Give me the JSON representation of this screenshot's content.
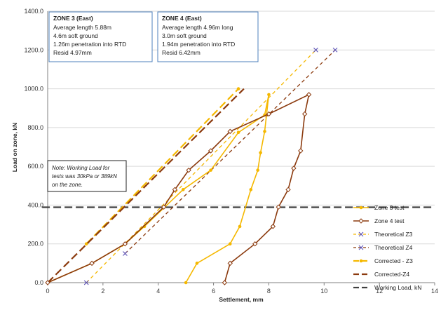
{
  "chart_data": {
    "type": "line",
    "title": "",
    "xlabel": "Settlement, mm",
    "ylabel": "Load on zone, kN",
    "xlim": [
      0,
      14
    ],
    "ylim": [
      0,
      1400
    ],
    "xticks": [
      "0",
      "2",
      "4",
      "6",
      "8",
      "10",
      "12",
      "14"
    ],
    "yticks": [
      "0.0",
      "200.0",
      "400.0",
      "600.0",
      "800.0",
      "1000.0",
      "1200.0",
      "1400.0"
    ],
    "grid": "horizontal",
    "legend_position": "right",
    "series": [
      {
        "name": "Zone 3 test",
        "color": "#F5B800",
        "style": "solid",
        "marker": "dot",
        "points": [
          [
            5.0,
            0
          ],
          [
            5.4,
            100
          ],
          [
            6.6,
            200
          ],
          [
            6.95,
            290
          ],
          [
            7.35,
            480
          ],
          [
            7.6,
            580
          ],
          [
            7.7,
            670
          ],
          [
            7.85,
            780
          ],
          [
            8.0,
            970
          ],
          [
            7.85,
            865
          ],
          [
            6.9,
            775
          ],
          [
            5.9,
            580
          ],
          [
            4.9,
            480
          ],
          [
            3.5,
            290
          ],
          [
            2.8,
            200
          ],
          [
            1.6,
            100
          ],
          [
            0,
            0
          ]
        ]
      },
      {
        "name": "Zone 4 test",
        "color": "#8B3A0E",
        "style": "solid",
        "marker": "diamond",
        "points": [
          [
            6.4,
            0
          ],
          [
            6.6,
            100
          ],
          [
            7.5,
            200
          ],
          [
            8.15,
            290
          ],
          [
            8.35,
            390
          ],
          [
            8.7,
            480
          ],
          [
            8.9,
            590
          ],
          [
            9.15,
            680
          ],
          [
            9.3,
            870
          ],
          [
            9.45,
            970
          ],
          [
            8.0,
            870
          ],
          [
            6.6,
            780
          ],
          [
            5.9,
            680
          ],
          [
            5.1,
            580
          ],
          [
            4.6,
            480
          ],
          [
            4.2,
            390
          ],
          [
            2.8,
            200
          ],
          [
            1.6,
            100
          ],
          [
            0,
            0
          ]
        ]
      },
      {
        "name": "Theoretical Z3",
        "color": "#F5B800",
        "style": "dashed",
        "marker": "x",
        "points": [
          [
            1.4,
            0
          ],
          [
            9.7,
            1200
          ]
        ]
      },
      {
        "name": "Theoretical Z4",
        "color": "#8B3A0E",
        "style": "dashed",
        "marker": "x",
        "points": [
          [
            2.8,
            150
          ],
          [
            10.4,
            1200
          ]
        ]
      },
      {
        "name": "Corrected - Z3",
        "color": "#F5B800",
        "style": "longdash",
        "marker": "dot",
        "points": [
          [
            1.4,
            200
          ],
          [
            6.9,
            1000
          ]
        ]
      },
      {
        "name": "Corrected-Z4",
        "color": "#8B3A0E",
        "style": "longdash",
        "marker": "none",
        "points": [
          [
            0,
            0
          ],
          [
            7.1,
            1000
          ]
        ]
      },
      {
        "name": "Working Load, kN",
        "color": "#404040",
        "style": "longdash",
        "marker": "none",
        "points": [
          [
            -0.2,
            389
          ],
          [
            14,
            389
          ]
        ]
      }
    ],
    "annotations": [
      {
        "title": "ZONE 3 (East)",
        "lines": [
          "Average length  5.88m",
          "4.6m soft ground",
          "1.26m penetration into RTD",
          "Resid 4.97mm"
        ]
      },
      {
        "title": "ZONE 4 (East)",
        "lines": [
          "Average length 4.96m long",
          "3.0m soft ground",
          "1.94m penetration into RTD",
          "Resid  6.42mm"
        ]
      },
      {
        "title": "",
        "lines": [
          "Note: Working Load for",
          "tests was 30kPa or 389kN",
          "on the zone."
        ]
      }
    ]
  }
}
